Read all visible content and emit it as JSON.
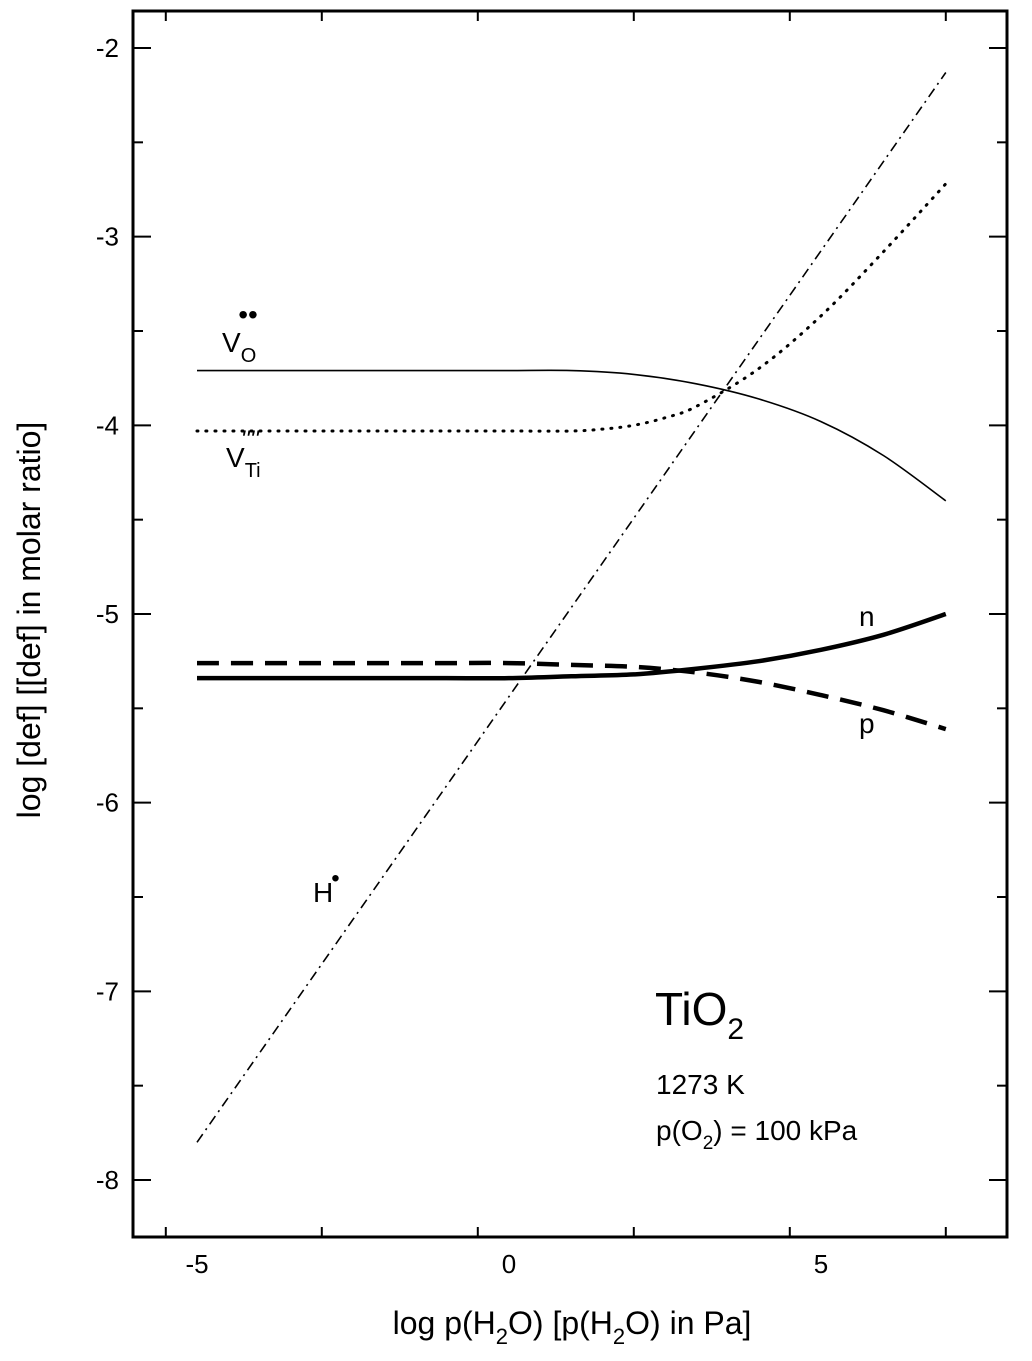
{
  "chart_data": {
    "type": "line",
    "title": "",
    "xlabel": {
      "pre": "log p(H",
      "sub1": "2",
      "mid": "O) [p(H",
      "sub2": "2",
      "post": "O) in Pa]"
    },
    "ylabel": "log [def] [[def] in molar ratio]",
    "xlim": [
      -6,
      8
    ],
    "ylim": [
      -8.3,
      -1.8
    ],
    "x_ticks": [
      -5,
      0,
      5
    ],
    "x_tick_labels": [
      "-5",
      "0",
      "5"
    ],
    "y_ticks": [
      -8,
      -7,
      -6,
      -5,
      -4,
      -3,
      -2
    ],
    "y_tick_labels": [
      "-8",
      "-7",
      "-6",
      "-5",
      "-4",
      "-3",
      "-2"
    ],
    "grid": false,
    "series": [
      {
        "label_main": "V",
        "label_sub": "O",
        "label_sup": "••",
        "style": "thin-solid",
        "x": [
          -5,
          -4,
          -3,
          -2,
          -1,
          0,
          1,
          2,
          3,
          4,
          5,
          6,
          7
        ],
        "y": [
          -3.71,
          -3.71,
          -3.71,
          -3.71,
          -3.71,
          -3.71,
          -3.71,
          -3.73,
          -3.78,
          -3.86,
          -3.98,
          -4.16,
          -4.4
        ]
      },
      {
        "label_main": "V",
        "label_sub": "Ti",
        "label_sup": "''''",
        "style": "dotted",
        "x": [
          -5,
          -4,
          -3,
          -2,
          -1,
          0,
          1,
          1.5,
          2,
          2.5,
          3,
          4,
          5,
          6,
          7
        ],
        "y": [
          -4.03,
          -4.03,
          -4.03,
          -4.03,
          -4.03,
          -4.03,
          -4.03,
          -4.02,
          -4.0,
          -3.96,
          -3.9,
          -3.7,
          -3.42,
          -3.08,
          -2.72
        ]
      },
      {
        "label_main": "n",
        "label_sub": "",
        "label_sup": "",
        "style": "thick-solid",
        "x": [
          -5,
          -4,
          -3,
          -2,
          -1,
          0,
          1,
          2,
          3,
          4,
          5,
          6,
          7
        ],
        "y": [
          -5.34,
          -5.34,
          -5.34,
          -5.34,
          -5.34,
          -5.34,
          -5.33,
          -5.32,
          -5.29,
          -5.25,
          -5.19,
          -5.11,
          -5.0
        ]
      },
      {
        "label_main": "p",
        "label_sub": "",
        "label_sup": "",
        "style": "thick-dashed",
        "x": [
          -5,
          -4,
          -3,
          -2,
          -1,
          0,
          1,
          2,
          3,
          4,
          5,
          6,
          7
        ],
        "y": [
          -5.26,
          -5.26,
          -5.26,
          -5.26,
          -5.26,
          -5.26,
          -5.27,
          -5.28,
          -5.31,
          -5.36,
          -5.43,
          -5.51,
          -5.61
        ]
      },
      {
        "label_main": "H",
        "label_sub": "",
        "label_sup": "•",
        "style": "dash-dot",
        "x": [
          -5,
          7
        ],
        "y": [
          -7.8,
          -2.13
        ]
      }
    ],
    "annotations": {
      "material_main": "TiO",
      "material_sub": "2",
      "temperature": "1273 K",
      "po2_pre": "p(O",
      "po2_sub": "2",
      "po2_post": ") = 100 kPa"
    }
  }
}
